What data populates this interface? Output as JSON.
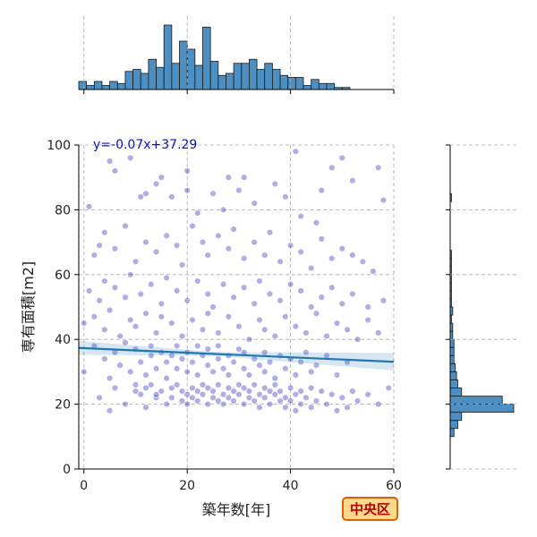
{
  "chart_data": {
    "type": "scatter",
    "xlabel": "築年数[年]",
    "ylabel": "専有面積[m2]",
    "xlim": [
      -1,
      60
    ],
    "ylim": [
      0,
      100
    ],
    "x_ticks": [
      0,
      20,
      40,
      60
    ],
    "y_ticks": [
      0,
      20,
      40,
      60,
      80,
      100
    ],
    "grid": true,
    "regression": {
      "label": "y=-0.07x+37.29",
      "slope": -0.07,
      "intercept": 37.29
    },
    "badge": "中央区",
    "colors": {
      "points": "#1a1ab3",
      "regression_line": "#1f77b4",
      "histogram": "#4c8fc0",
      "badge_fill": "#ffd98a",
      "badge_border": "#e0600a"
    },
    "top_histogram": {
      "bin_start": -1,
      "bin_width": 1.5,
      "counts": [
        4,
        2,
        4,
        2,
        4,
        3,
        9,
        10,
        8,
        15,
        11,
        32,
        13,
        24,
        20,
        12,
        31,
        14,
        7,
        8,
        13,
        13,
        15,
        10,
        13,
        10,
        7,
        6,
        6,
        2,
        5,
        3,
        3,
        1,
        1
      ]
    },
    "right_histogram": {
      "bin_start": 10,
      "bin_width": 2.5,
      "counts": [
        3,
        6,
        9,
        50,
        41,
        9,
        6,
        5,
        4,
        3,
        3,
        3,
        2,
        2,
        1,
        2,
        1,
        1,
        1,
        1,
        1,
        1,
        1,
        0,
        0,
        0,
        0,
        0,
        0,
        1
      ]
    },
    "points": [
      [
        1,
        81
      ],
      [
        3,
        69
      ],
      [
        5,
        95
      ],
      [
        6,
        92
      ],
      [
        9,
        96
      ],
      [
        11,
        84
      ],
      [
        12,
        85
      ],
      [
        14,
        88
      ],
      [
        15,
        90
      ],
      [
        17,
        84
      ],
      [
        20,
        92
      ],
      [
        20,
        86
      ],
      [
        22,
        79
      ],
      [
        25,
        85
      ],
      [
        27,
        80
      ],
      [
        28,
        90
      ],
      [
        30,
        86
      ],
      [
        31,
        90
      ],
      [
        33,
        82
      ],
      [
        37,
        88
      ],
      [
        39,
        84
      ],
      [
        41,
        98
      ],
      [
        42,
        78
      ],
      [
        45,
        76
      ],
      [
        48,
        93
      ],
      [
        50,
        96
      ],
      [
        52,
        89
      ],
      [
        57,
        93
      ],
      [
        58,
        83
      ],
      [
        46,
        86
      ],
      [
        2,
        66
      ],
      [
        4,
        73
      ],
      [
        6,
        68
      ],
      [
        8,
        75
      ],
      [
        10,
        64
      ],
      [
        12,
        70
      ],
      [
        14,
        67
      ],
      [
        16,
        72
      ],
      [
        18,
        69
      ],
      [
        19,
        63
      ],
      [
        21,
        75
      ],
      [
        23,
        70
      ],
      [
        24,
        66
      ],
      [
        26,
        72
      ],
      [
        28,
        68
      ],
      [
        29,
        74
      ],
      [
        31,
        65
      ],
      [
        33,
        70
      ],
      [
        35,
        66
      ],
      [
        36,
        73
      ],
      [
        38,
        64
      ],
      [
        40,
        69
      ],
      [
        42,
        67
      ],
      [
        44,
        62
      ],
      [
        46,
        71
      ],
      [
        48,
        65
      ],
      [
        50,
        68
      ],
      [
        52,
        66
      ],
      [
        54,
        64
      ],
      [
        56,
        61
      ],
      [
        1,
        55
      ],
      [
        3,
        52
      ],
      [
        4,
        58
      ],
      [
        6,
        56
      ],
      [
        8,
        53
      ],
      [
        9,
        60
      ],
      [
        11,
        54
      ],
      [
        13,
        57
      ],
      [
        15,
        51
      ],
      [
        16,
        59
      ],
      [
        18,
        55
      ],
      [
        20,
        52
      ],
      [
        22,
        58
      ],
      [
        24,
        54
      ],
      [
        25,
        50
      ],
      [
        27,
        57
      ],
      [
        29,
        53
      ],
      [
        31,
        56
      ],
      [
        33,
        51
      ],
      [
        34,
        58
      ],
      [
        36,
        54
      ],
      [
        38,
        52
      ],
      [
        40,
        57
      ],
      [
        42,
        55
      ],
      [
        44,
        50
      ],
      [
        46,
        53
      ],
      [
        48,
        56
      ],
      [
        50,
        51
      ],
      [
        52,
        54
      ],
      [
        55,
        50
      ],
      [
        58,
        52
      ],
      [
        0,
        45
      ],
      [
        2,
        47
      ],
      [
        4,
        43
      ],
      [
        5,
        49
      ],
      [
        7,
        41
      ],
      [
        9,
        46
      ],
      [
        10,
        44
      ],
      [
        12,
        48
      ],
      [
        14,
        42
      ],
      [
        15,
        47
      ],
      [
        17,
        45
      ],
      [
        19,
        41
      ],
      [
        21,
        46
      ],
      [
        23,
        43
      ],
      [
        24,
        48
      ],
      [
        26,
        42
      ],
      [
        28,
        47
      ],
      [
        30,
        44
      ],
      [
        32,
        40
      ],
      [
        34,
        46
      ],
      [
        35,
        43
      ],
      [
        37,
        41
      ],
      [
        39,
        47
      ],
      [
        41,
        44
      ],
      [
        43,
        42
      ],
      [
        45,
        48
      ],
      [
        47,
        41
      ],
      [
        49,
        45
      ],
      [
        51,
        43
      ],
      [
        53,
        40
      ],
      [
        55,
        46
      ],
      [
        57,
        42
      ],
      [
        0,
        30
      ],
      [
        2,
        38
      ],
      [
        4,
        34
      ],
      [
        5,
        28
      ],
      [
        6,
        36
      ],
      [
        7,
        32
      ],
      [
        8,
        39
      ],
      [
        9,
        30
      ],
      [
        10,
        37
      ],
      [
        11,
        33
      ],
      [
        12,
        29
      ],
      [
        13,
        35
      ],
      [
        13,
        38
      ],
      [
        14,
        31
      ],
      [
        15,
        36
      ],
      [
        16,
        33
      ],
      [
        16,
        28
      ],
      [
        17,
        35
      ],
      [
        18,
        38
      ],
      [
        18,
        31
      ],
      [
        19,
        34
      ],
      [
        20,
        36
      ],
      [
        20,
        30
      ],
      [
        21,
        33
      ],
      [
        22,
        38
      ],
      [
        22,
        29
      ],
      [
        23,
        35
      ],
      [
        24,
        32
      ],
      [
        24,
        37
      ],
      [
        25,
        30
      ],
      [
        26,
        34
      ],
      [
        26,
        38
      ],
      [
        27,
        31
      ],
      [
        28,
        35
      ],
      [
        28,
        29
      ],
      [
        29,
        33
      ],
      [
        30,
        37
      ],
      [
        31,
        31
      ],
      [
        31,
        36
      ],
      [
        32,
        29
      ],
      [
        33,
        34
      ],
      [
        34,
        32
      ],
      [
        35,
        36
      ],
      [
        35,
        30
      ],
      [
        36,
        33
      ],
      [
        37,
        28
      ],
      [
        38,
        35
      ],
      [
        39,
        31
      ],
      [
        40,
        34
      ],
      [
        41,
        29
      ],
      [
        42,
        33
      ],
      [
        43,
        36
      ],
      [
        44,
        30
      ],
      [
        45,
        32
      ],
      [
        47,
        35
      ],
      [
        49,
        29
      ],
      [
        51,
        33
      ],
      [
        3,
        22
      ],
      [
        5,
        18
      ],
      [
        6,
        25
      ],
      [
        8,
        20
      ],
      [
        10,
        26
      ],
      [
        11,
        23
      ],
      [
        12,
        19
      ],
      [
        13,
        26
      ],
      [
        14,
        22
      ],
      [
        15,
        24
      ],
      [
        16,
        20
      ],
      [
        17,
        25
      ],
      [
        17,
        22
      ],
      [
        18,
        26
      ],
      [
        19,
        21
      ],
      [
        19,
        24
      ],
      [
        20,
        23
      ],
      [
        20,
        20
      ],
      [
        21,
        25
      ],
      [
        21,
        22
      ],
      [
        22,
        24
      ],
      [
        22,
        21
      ],
      [
        23,
        26
      ],
      [
        23,
        23
      ],
      [
        24,
        20
      ],
      [
        24,
        25
      ],
      [
        25,
        22
      ],
      [
        25,
        24
      ],
      [
        26,
        21
      ],
      [
        26,
        26
      ],
      [
        27,
        23
      ],
      [
        27,
        20
      ],
      [
        28,
        25
      ],
      [
        28,
        22
      ],
      [
        29,
        24
      ],
      [
        29,
        21
      ],
      [
        30,
        26
      ],
      [
        30,
        23
      ],
      [
        31,
        20
      ],
      [
        31,
        25
      ],
      [
        32,
        22
      ],
      [
        32,
        24
      ],
      [
        33,
        21
      ],
      [
        33,
        26
      ],
      [
        34,
        23
      ],
      [
        34,
        19
      ],
      [
        35,
        25
      ],
      [
        35,
        22
      ],
      [
        36,
        24
      ],
      [
        36,
        20
      ],
      [
        37,
        23
      ],
      [
        37,
        26
      ],
      [
        38,
        21
      ],
      [
        38,
        24
      ],
      [
        39,
        22
      ],
      [
        39,
        19
      ],
      [
        40,
        25
      ],
      [
        40,
        21
      ],
      [
        41,
        23
      ],
      [
        41,
        18
      ],
      [
        42,
        24
      ],
      [
        42,
        20
      ],
      [
        43,
        22
      ],
      [
        44,
        25
      ],
      [
        44,
        19
      ],
      [
        45,
        21
      ],
      [
        46,
        24
      ],
      [
        47,
        20
      ],
      [
        48,
        23
      ],
      [
        49,
        18
      ],
      [
        50,
        22
      ],
      [
        51,
        19
      ],
      [
        52,
        24
      ],
      [
        53,
        21
      ],
      [
        55,
        23
      ],
      [
        57,
        20
      ],
      [
        59,
        25
      ],
      [
        10,
        24
      ],
      [
        12,
        25
      ],
      [
        14,
        23
      ]
    ]
  }
}
